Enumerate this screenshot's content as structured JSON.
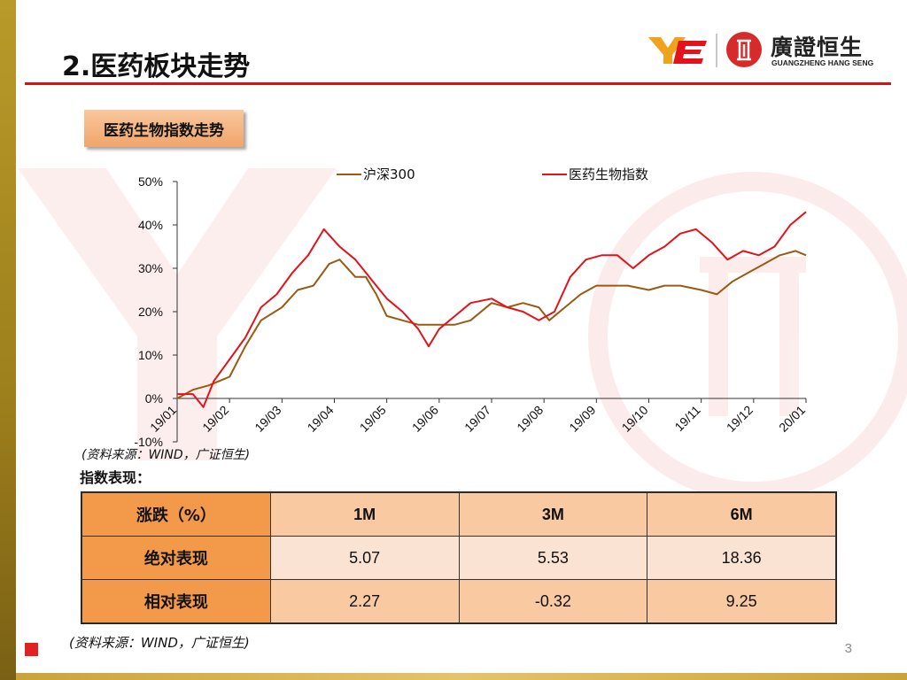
{
  "slide": {
    "title": "2.医药板块走势",
    "page_number": "3",
    "accent_red": "#e00f0f",
    "accent_gold": "#c8a43a"
  },
  "logo": {
    "name_cn": "廣證恒生",
    "name_en": "GUANGZHENG HANG SENG",
    "mark": "YE"
  },
  "tag": {
    "label": "医药生物指数走势"
  },
  "chart_data": {
    "type": "line",
    "yticks": [
      "50%",
      "40%",
      "30%",
      "20%",
      "10%",
      "0%",
      "-10%"
    ],
    "ylim": [
      -10,
      50
    ],
    "xticks": [
      "19/01",
      "19/02",
      "19/03",
      "19/04",
      "19/05",
      "19/06",
      "19/07",
      "19/08",
      "19/09",
      "19/10",
      "19/11",
      "19/12",
      "20/01"
    ],
    "xlim": [
      0,
      12
    ],
    "grid": false,
    "legend_position": "top",
    "series": [
      {
        "name": "沪深300",
        "color": "#9a5a12",
        "points": [
          [
            0,
            0
          ],
          [
            0.3,
            2
          ],
          [
            0.6,
            3
          ],
          [
            1,
            5
          ],
          [
            1.3,
            12
          ],
          [
            1.6,
            18
          ],
          [
            2,
            21
          ],
          [
            2.3,
            25
          ],
          [
            2.6,
            26
          ],
          [
            2.9,
            31
          ],
          [
            3.1,
            32
          ],
          [
            3.4,
            28
          ],
          [
            3.6,
            28
          ],
          [
            3.8,
            24
          ],
          [
            4,
            19
          ],
          [
            4.3,
            18
          ],
          [
            4.6,
            17
          ],
          [
            5,
            17
          ],
          [
            5.3,
            17
          ],
          [
            5.6,
            18
          ],
          [
            6,
            22
          ],
          [
            6.3,
            21
          ],
          [
            6.6,
            22
          ],
          [
            6.9,
            21
          ],
          [
            7.1,
            18
          ],
          [
            7.4,
            21
          ],
          [
            7.7,
            24
          ],
          [
            8,
            26
          ],
          [
            8.3,
            26
          ],
          [
            8.6,
            26
          ],
          [
            9,
            25
          ],
          [
            9.3,
            26
          ],
          [
            9.6,
            26
          ],
          [
            10,
            25
          ],
          [
            10.3,
            24
          ],
          [
            10.6,
            27
          ],
          [
            10.9,
            29
          ],
          [
            11.2,
            31
          ],
          [
            11.5,
            33
          ],
          [
            11.8,
            34
          ],
          [
            12,
            33
          ]
        ]
      },
      {
        "name": "医药生物指数",
        "color": "#e4121a",
        "points": [
          [
            0,
            1
          ],
          [
            0.3,
            1
          ],
          [
            0.5,
            -2
          ],
          [
            0.7,
            4
          ],
          [
            1,
            9
          ],
          [
            1.3,
            14
          ],
          [
            1.6,
            21
          ],
          [
            1.9,
            24
          ],
          [
            2.2,
            29
          ],
          [
            2.5,
            33
          ],
          [
            2.8,
            39
          ],
          [
            3.1,
            35
          ],
          [
            3.4,
            32
          ],
          [
            3.6,
            29
          ],
          [
            3.8,
            26
          ],
          [
            4,
            23
          ],
          [
            4.3,
            20
          ],
          [
            4.6,
            16
          ],
          [
            4.8,
            12
          ],
          [
            5,
            16
          ],
          [
            5.3,
            19
          ],
          [
            5.6,
            22
          ],
          [
            6,
            23
          ],
          [
            6.3,
            21
          ],
          [
            6.6,
            20
          ],
          [
            6.9,
            18
          ],
          [
            7.2,
            20
          ],
          [
            7.5,
            28
          ],
          [
            7.8,
            32
          ],
          [
            8.1,
            33
          ],
          [
            8.4,
            33
          ],
          [
            8.7,
            30
          ],
          [
            9,
            33
          ],
          [
            9.3,
            35
          ],
          [
            9.6,
            38
          ],
          [
            9.9,
            39
          ],
          [
            10.2,
            36
          ],
          [
            10.5,
            32
          ],
          [
            10.8,
            34
          ],
          [
            11.1,
            33
          ],
          [
            11.4,
            35
          ],
          [
            11.7,
            40
          ],
          [
            12,
            43
          ]
        ]
      }
    ]
  },
  "source_note": "(资料来源：WIND，广证恒生)",
  "table_title": "指数表现：",
  "table": {
    "headers": [
      "涨跌（%）",
      "1M",
      "3M",
      "6M"
    ],
    "rows": [
      {
        "label": "绝对表现",
        "values": [
          "5.07",
          "5.53",
          "18.36"
        ]
      },
      {
        "label": "相对表现",
        "values": [
          "2.27",
          "-0.32",
          "9.25"
        ]
      }
    ]
  }
}
